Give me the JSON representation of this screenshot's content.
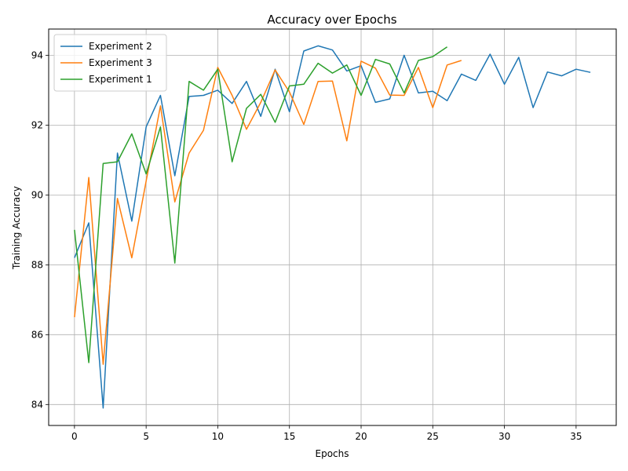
{
  "chart_data": {
    "type": "line",
    "title": "Accuracy over Epochs",
    "xlabel": "Epochs",
    "ylabel": "Training Accuracy",
    "xlim": [
      -1.8,
      37.8
    ],
    "ylim": [
      83.4,
      94.75
    ],
    "xticks": [
      0,
      5,
      10,
      15,
      20,
      25,
      30,
      35
    ],
    "yticks": [
      84,
      86,
      88,
      90,
      92,
      94
    ],
    "grid": true,
    "legend_position": "top-left",
    "series": [
      {
        "name": "Experiment 2",
        "color": "#1f77b4",
        "x": [
          0,
          1,
          2,
          3,
          4,
          5,
          6,
          7,
          8,
          9,
          10,
          11,
          12,
          13,
          14,
          15,
          16,
          17,
          18,
          19,
          20,
          21,
          22,
          23,
          24,
          25,
          26,
          27,
          28,
          29,
          30,
          31,
          32,
          33,
          34,
          35,
          36
        ],
        "values": [
          88.2,
          89.2,
          83.9,
          91.2,
          89.25,
          91.95,
          92.85,
          90.55,
          92.82,
          92.85,
          93.0,
          92.62,
          93.25,
          92.25,
          93.6,
          92.38,
          94.12,
          94.27,
          94.15,
          93.55,
          93.7,
          92.65,
          92.75,
          94.0,
          92.92,
          92.97,
          92.7,
          93.46,
          93.28,
          94.03,
          93.17,
          93.94,
          92.5,
          93.52,
          93.41,
          93.6,
          93.51
        ]
      },
      {
        "name": "Experiment 3",
        "color": "#ff7f0e",
        "x": [
          0,
          1,
          2,
          3,
          4,
          5,
          6,
          7,
          8,
          9,
          10,
          11,
          12,
          13,
          14,
          15,
          16,
          17,
          18,
          19,
          20,
          21,
          22,
          23,
          24,
          25,
          26,
          27
        ],
        "values": [
          86.5,
          90.5,
          85.15,
          89.9,
          88.2,
          90.4,
          92.55,
          89.8,
          91.2,
          91.85,
          93.65,
          92.85,
          91.88,
          92.65,
          93.58,
          92.95,
          92.02,
          93.25,
          93.26,
          91.55,
          93.83,
          93.63,
          92.86,
          92.85,
          93.65,
          92.5,
          93.72,
          93.85
        ]
      },
      {
        "name": "Experiment 1",
        "color": "#2ca02c",
        "x": [
          0,
          1,
          2,
          3,
          4,
          5,
          6,
          7,
          8,
          9,
          10,
          11,
          12,
          13,
          14,
          15,
          16,
          17,
          18,
          19,
          20,
          21,
          22,
          23,
          24,
          25,
          26
        ],
        "values": [
          89.0,
          85.2,
          90.9,
          90.95,
          91.75,
          90.6,
          91.95,
          88.05,
          93.25,
          93.0,
          93.6,
          90.95,
          92.48,
          92.88,
          92.08,
          93.12,
          93.17,
          93.77,
          93.49,
          93.72,
          92.85,
          93.88,
          93.75,
          92.92,
          93.85,
          93.96,
          94.24
        ]
      }
    ]
  }
}
